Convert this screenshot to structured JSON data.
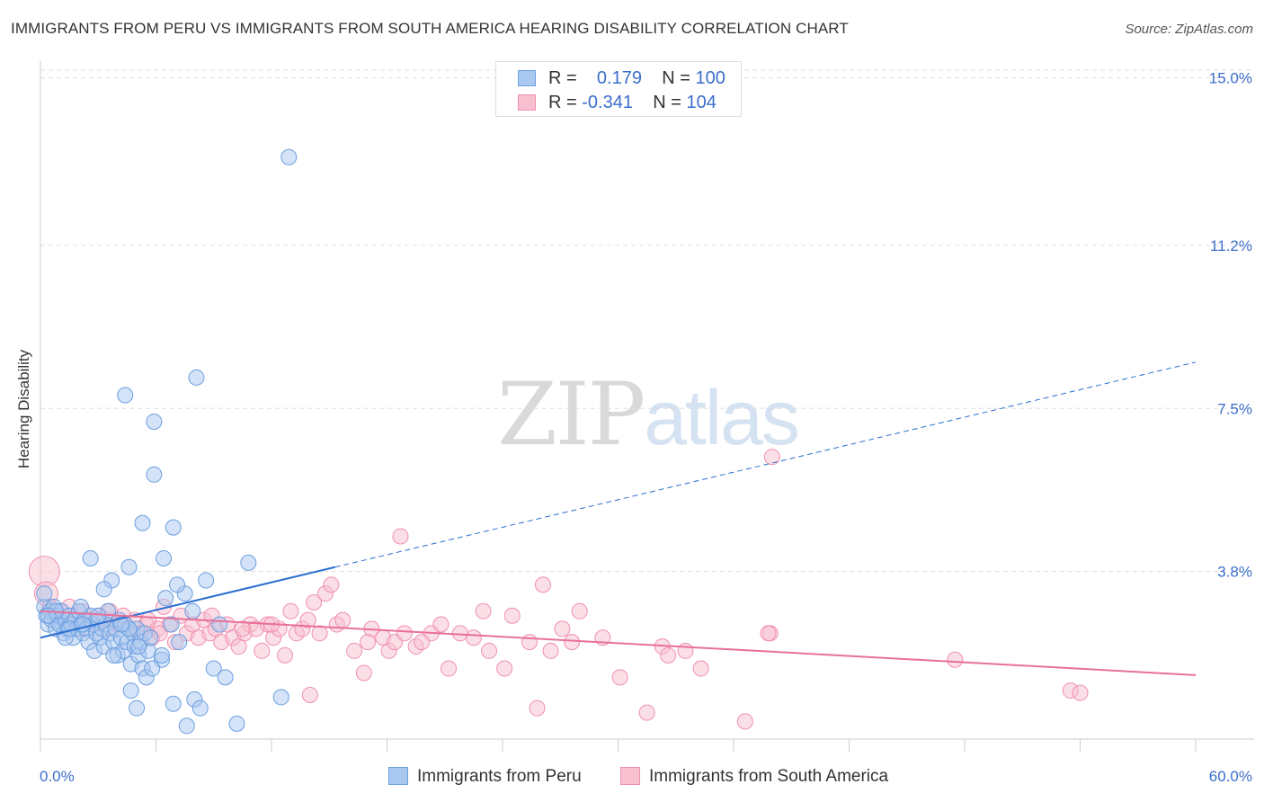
{
  "header": {
    "title": "IMMIGRANTS FROM PERU VS IMMIGRANTS FROM SOUTH AMERICA HEARING DISABILITY CORRELATION CHART",
    "source": "Source: ZipAtlas.com"
  },
  "watermark": {
    "part1": "ZIP",
    "part2": "atlas"
  },
  "legend": {
    "rows": [
      {
        "r_label": "R =",
        "r_value": "0.179",
        "n_label": "N =",
        "n_value": "100"
      },
      {
        "r_label": "R =",
        "r_value": "-0.341",
        "n_label": "N =",
        "n_value": "104"
      }
    ]
  },
  "colors": {
    "peru_fill": "#a9c8f0",
    "peru_stroke": "#6b9fe0",
    "peru_line": "#2b6fd0",
    "sa_fill": "#f7bfd0",
    "sa_stroke": "#ef8fae",
    "sa_line": "#e8709a",
    "axis_label": "#3b6ecc",
    "grid": "#dddddd"
  },
  "chart_data": {
    "type": "scatter",
    "title": "IMMIGRANTS FROM PERU VS IMMIGRANTS FROM SOUTH AMERICA HEARING DISABILITY CORRELATION CHART",
    "xlabel": "",
    "ylabel": "Hearing Disability",
    "xlim": [
      0,
      60
    ],
    "ylim": [
      0,
      15.5
    ],
    "x_tick_labels": [
      "0.0%",
      "60.0%"
    ],
    "y_ticks": [
      3.8,
      7.5,
      11.2,
      15.0
    ],
    "y_tick_labels": [
      "3.8%",
      "7.5%",
      "11.2%",
      "15.0%"
    ],
    "grid": true,
    "legend_position": "top-center",
    "series": [
      {
        "name": "Immigrants from Peru",
        "r": 0.179,
        "n": 100,
        "trend": {
          "x_solid": [
            0,
            15.3
          ],
          "y_solid": [
            2.3,
            3.9
          ],
          "x_dashed": [
            15.3,
            60
          ],
          "y_dashed": [
            3.9,
            8.55
          ]
        },
        "points": [
          [
            0.2,
            3.0
          ],
          [
            0.3,
            2.8
          ],
          [
            0.4,
            2.6
          ],
          [
            0.5,
            2.9
          ],
          [
            0.6,
            2.7
          ],
          [
            0.7,
            3.0
          ],
          [
            0.8,
            2.5
          ],
          [
            0.9,
            2.8
          ],
          [
            1.0,
            2.6
          ],
          [
            1.1,
            2.9
          ],
          [
            1.2,
            2.4
          ],
          [
            1.3,
            2.7
          ],
          [
            1.4,
            2.5
          ],
          [
            1.5,
            2.8
          ],
          [
            1.6,
            2.6
          ],
          [
            1.7,
            2.3
          ],
          [
            1.8,
            2.7
          ],
          [
            1.9,
            2.5
          ],
          [
            2.0,
            2.9
          ],
          [
            2.1,
            2.6
          ],
          [
            2.2,
            2.4
          ],
          [
            2.3,
            2.7
          ],
          [
            2.4,
            2.5
          ],
          [
            2.5,
            2.2
          ],
          [
            2.6,
            2.8
          ],
          [
            2.7,
            2.6
          ],
          [
            2.8,
            2.0
          ],
          [
            2.9,
            2.4
          ],
          [
            3.0,
            2.7
          ],
          [
            3.1,
            2.3
          ],
          [
            3.2,
            2.5
          ],
          [
            3.3,
            2.1
          ],
          [
            3.4,
            2.6
          ],
          [
            3.5,
            2.9
          ],
          [
            3.6,
            2.4
          ],
          [
            3.7,
            3.6
          ],
          [
            3.8,
            2.2
          ],
          [
            3.9,
            2.5
          ],
          [
            4.0,
            1.9
          ],
          [
            4.1,
            2.7
          ],
          [
            4.2,
            2.3
          ],
          [
            4.3,
            2.0
          ],
          [
            4.4,
            2.6
          ],
          [
            4.5,
            2.2
          ],
          [
            4.6,
            3.9
          ],
          [
            4.7,
            1.7
          ],
          [
            4.8,
            2.4
          ],
          [
            4.9,
            2.1
          ],
          [
            5.0,
            2.5
          ],
          [
            5.1,
            1.9
          ],
          [
            5.2,
            2.2
          ],
          [
            5.3,
            1.6
          ],
          [
            5.4,
            2.4
          ],
          [
            5.5,
            1.4
          ],
          [
            5.6,
            2.0
          ],
          [
            5.7,
            2.3
          ],
          [
            4.4,
            7.8
          ],
          [
            5.9,
            7.2
          ],
          [
            5.9,
            6.0
          ],
          [
            5.3,
            4.9
          ],
          [
            6.3,
            1.8
          ],
          [
            6.5,
            3.2
          ],
          [
            6.8,
            2.6
          ],
          [
            7.2,
            2.2
          ],
          [
            7.5,
            3.3
          ],
          [
            3.3,
            3.4
          ],
          [
            2.6,
            4.1
          ],
          [
            6.4,
            4.1
          ],
          [
            6.9,
            4.8
          ],
          [
            8.1,
            8.2
          ],
          [
            7.1,
            3.5
          ],
          [
            8.6,
            3.6
          ],
          [
            10.8,
            4.0
          ],
          [
            12.9,
            13.2
          ],
          [
            5.0,
            0.7
          ],
          [
            6.9,
            0.8
          ],
          [
            7.6,
            0.3
          ],
          [
            8.0,
            0.9
          ],
          [
            8.3,
            0.7
          ],
          [
            10.2,
            0.35
          ],
          [
            12.5,
            0.95
          ],
          [
            9.0,
            1.6
          ],
          [
            9.6,
            1.4
          ],
          [
            5.8,
            1.6
          ],
          [
            4.7,
            1.1
          ],
          [
            3.8,
            1.9
          ],
          [
            4.6,
            2.5
          ],
          [
            6.3,
            1.9
          ],
          [
            1.3,
            2.3
          ],
          [
            2.1,
            3.0
          ],
          [
            0.8,
            2.9
          ],
          [
            1.5,
            2.5
          ],
          [
            2.2,
            2.6
          ],
          [
            3.0,
            2.8
          ],
          [
            5.1,
            2.1
          ],
          [
            4.2,
            2.6
          ],
          [
            0.2,
            3.3
          ],
          [
            0.4,
            2.8
          ],
          [
            7.9,
            2.9
          ],
          [
            9.3,
            2.6
          ]
        ]
      },
      {
        "name": "Immigrants from South America",
        "r": -0.341,
        "n": 104,
        "trend": {
          "x_solid": [
            0,
            60
          ],
          "y_solid": [
            2.9,
            1.45
          ]
        },
        "points": [
          [
            0.2,
            3.8
          ],
          [
            0.3,
            3.3
          ],
          [
            0.5,
            3.0
          ],
          [
            0.8,
            2.8
          ],
          [
            1.0,
            2.9
          ],
          [
            1.3,
            2.7
          ],
          [
            1.6,
            2.8
          ],
          [
            1.9,
            2.6
          ],
          [
            2.2,
            2.9
          ],
          [
            2.5,
            2.7
          ],
          [
            2.8,
            2.6
          ],
          [
            3.1,
            2.8
          ],
          [
            3.4,
            2.5
          ],
          [
            3.7,
            2.7
          ],
          [
            4.0,
            2.6
          ],
          [
            4.3,
            2.8
          ],
          [
            4.6,
            2.5
          ],
          [
            4.9,
            2.7
          ],
          [
            5.2,
            2.4
          ],
          [
            5.5,
            2.6
          ],
          [
            5.8,
            2.3
          ],
          [
            6.1,
            2.5
          ],
          [
            6.4,
            3.0
          ],
          [
            6.7,
            2.6
          ],
          [
            7.0,
            2.2
          ],
          [
            7.3,
            2.8
          ],
          [
            7.6,
            2.4
          ],
          [
            7.9,
            2.6
          ],
          [
            8.2,
            2.3
          ],
          [
            8.5,
            2.7
          ],
          [
            8.8,
            2.4
          ],
          [
            9.1,
            2.5
          ],
          [
            9.4,
            2.2
          ],
          [
            9.7,
            2.6
          ],
          [
            10.0,
            2.3
          ],
          [
            10.3,
            2.1
          ],
          [
            10.6,
            2.4
          ],
          [
            10.9,
            2.6
          ],
          [
            11.2,
            2.5
          ],
          [
            11.5,
            2.0
          ],
          [
            11.8,
            2.6
          ],
          [
            12.1,
            2.3
          ],
          [
            12.4,
            2.5
          ],
          [
            12.7,
            1.9
          ],
          [
            13.0,
            2.9
          ],
          [
            13.3,
            2.4
          ],
          [
            13.6,
            2.5
          ],
          [
            13.9,
            2.7
          ],
          [
            14.2,
            3.1
          ],
          [
            14.5,
            2.4
          ],
          [
            14.8,
            3.3
          ],
          [
            15.1,
            3.5
          ],
          [
            15.4,
            2.6
          ],
          [
            15.7,
            2.7
          ],
          [
            16.3,
            2.0
          ],
          [
            16.8,
            1.5
          ],
          [
            17.2,
            2.5
          ],
          [
            17.8,
            2.3
          ],
          [
            18.1,
            2.0
          ],
          [
            18.4,
            2.2
          ],
          [
            18.9,
            2.4
          ],
          [
            19.5,
            2.1
          ],
          [
            20.3,
            2.4
          ],
          [
            20.8,
            2.6
          ],
          [
            21.2,
            1.6
          ],
          [
            21.8,
            2.4
          ],
          [
            22.5,
            2.3
          ],
          [
            23.0,
            2.9
          ],
          [
            23.3,
            2.0
          ],
          [
            24.1,
            1.6
          ],
          [
            24.5,
            2.8
          ],
          [
            25.4,
            2.2
          ],
          [
            25.8,
            0.7
          ],
          [
            26.1,
            3.5
          ],
          [
            26.5,
            2.0
          ],
          [
            27.1,
            2.5
          ],
          [
            27.6,
            2.2
          ],
          [
            28.0,
            2.9
          ],
          [
            29.2,
            2.3
          ],
          [
            30.1,
            1.4
          ],
          [
            31.5,
            0.6
          ],
          [
            32.3,
            2.1
          ],
          [
            32.6,
            1.9
          ],
          [
            33.5,
            2.0
          ],
          [
            34.3,
            1.6
          ],
          [
            36.6,
            0.4
          ],
          [
            37.9,
            2.4
          ],
          [
            18.7,
            4.6
          ],
          [
            38.0,
            6.4
          ],
          [
            37.8,
            2.4
          ],
          [
            47.5,
            1.8
          ],
          [
            53.5,
            1.1
          ],
          [
            54.0,
            1.05
          ],
          [
            1.5,
            3.0
          ],
          [
            2.0,
            2.5
          ],
          [
            3.6,
            2.9
          ],
          [
            5.6,
            2.7
          ],
          [
            6.2,
            2.4
          ],
          [
            8.9,
            2.8
          ],
          [
            10.5,
            2.5
          ],
          [
            12.0,
            2.6
          ],
          [
            14.0,
            1.0
          ],
          [
            17.0,
            2.2
          ],
          [
            19.8,
            2.2
          ]
        ]
      }
    ]
  },
  "bottom_legend": {
    "items": [
      {
        "label": "Immigrants from Peru"
      },
      {
        "label": "Immigrants from South America"
      }
    ]
  }
}
